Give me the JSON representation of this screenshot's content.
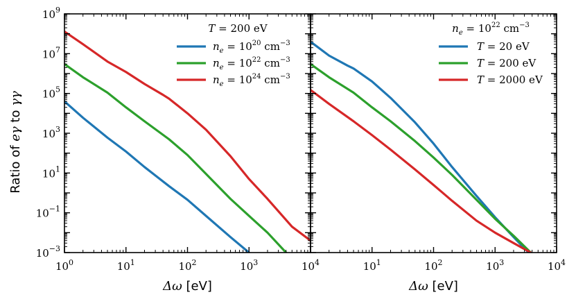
{
  "chart_data": [
    {
      "type": "line",
      "panel": "left",
      "xscale": "log",
      "yscale": "log",
      "xlim": [
        1,
        10000
      ],
      "ylim": [
        0.001,
        1000000000
      ],
      "xlabel": "Δω [eV]",
      "ylabel": "Ratio of eγ to γγ",
      "xticks": [
        {
          "v": 1,
          "base": "10",
          "exp": "0"
        },
        {
          "v": 10,
          "base": "10",
          "exp": "1"
        },
        {
          "v": 100,
          "base": "10",
          "exp": "2"
        },
        {
          "v": 1000,
          "base": "10",
          "exp": "3"
        },
        {
          "v": 10000,
          "base": "10",
          "exp": "4"
        }
      ],
      "yticks": [
        {
          "v": 0.001,
          "base": "10",
          "exp": "−3"
        },
        {
          "v": 0.1,
          "base": "10",
          "exp": "−1"
        },
        {
          "v": 10,
          "base": "10",
          "exp": "1"
        },
        {
          "v": 1000,
          "base": "10",
          "exp": "3"
        },
        {
          "v": 100000,
          "base": "10",
          "exp": "5"
        },
        {
          "v": 10000000,
          "base": "10",
          "exp": "7"
        },
        {
          "v": 1000000000,
          "base": "10",
          "exp": "9"
        }
      ],
      "legend_title": "T = 200 eV",
      "legend_loc": "upper right",
      "series": [
        {
          "name": "n_e = 10^20 cm^-3",
          "label_main": "n",
          "label_sub": "e",
          "label_rest": " = 10",
          "label_sup": "20",
          "label_unit": " cm",
          "label_unit_sup": "−3",
          "color": "#1f77b4",
          "x": [
            1,
            2,
            5,
            10,
            20,
            50,
            100,
            200,
            500,
            1000
          ],
          "y": [
            40000,
            6000,
            600,
            120,
            20,
            2.2,
            0.45,
            0.07,
            0.006,
            0.001
          ]
        },
        {
          "name": "n_e = 10^22 cm^-3",
          "label_main": "n",
          "label_sub": "e",
          "label_rest": " = 10",
          "label_sup": "22",
          "label_unit": " cm",
          "label_unit_sup": "−3",
          "color": "#2ca02c",
          "x": [
            1,
            2,
            5,
            10,
            20,
            50,
            100,
            200,
            500,
            1000,
            2000,
            4000
          ],
          "y": [
            3000000,
            650000,
            110000,
            20000,
            4000,
            500,
            80,
            9,
            0.5,
            0.07,
            0.01,
            0.001
          ]
        },
        {
          "name": "n_e = 10^24 cm^-3",
          "label_main": "n",
          "label_sub": "e",
          "label_rest": " = 10",
          "label_sup": "24",
          "label_unit": " cm",
          "label_unit_sup": "−3",
          "color": "#d62728",
          "x": [
            1,
            2,
            5,
            10,
            20,
            40,
            50,
            100,
            200,
            500,
            1000,
            2000,
            5000,
            10000
          ],
          "y": [
            130000000,
            30000000,
            4000000,
            1200000,
            300000,
            85000,
            55000,
            10000,
            1500,
            70,
            5,
            0.5,
            0.02,
            0.004
          ]
        }
      ]
    },
    {
      "type": "line",
      "panel": "right",
      "xscale": "log",
      "yscale": "log",
      "xlim": [
        1,
        10000
      ],
      "ylim": [
        0.001,
        1000000000
      ],
      "xlabel": "Δω [eV]",
      "xticks": [
        {
          "v": 10,
          "base": "10",
          "exp": "1"
        },
        {
          "v": 100,
          "base": "10",
          "exp": "2"
        },
        {
          "v": 1000,
          "base": "10",
          "exp": "3"
        },
        {
          "v": 10000,
          "base": "10",
          "exp": "4"
        }
      ],
      "legend_title": "n_e = 10^22 cm^-3",
      "legend_title_parts": {
        "main": "n",
        "sub": "e",
        "rest": " = 10",
        "sup": "22",
        "unit": " cm",
        "unit_sup": "−3"
      },
      "legend_loc": "upper right",
      "series": [
        {
          "name": "T = 20 eV",
          "label_text": "T = 20 eV",
          "color": "#1f77b4",
          "x": [
            1,
            2,
            4,
            5,
            10,
            20,
            50,
            100,
            200,
            500,
            1000,
            2000,
            3500
          ],
          "y": [
            40000000,
            8000000,
            2500000,
            1800000,
            400000,
            60000,
            3500,
            300,
            20,
            0.7,
            0.06,
            0.006,
            0.001
          ]
        },
        {
          "name": "T = 200 eV",
          "label_text": "T = 200 eV",
          "color": "#2ca02c",
          "x": [
            1,
            2,
            5,
            10,
            20,
            50,
            100,
            200,
            500,
            1000,
            2000,
            3800
          ],
          "y": [
            3000000,
            650000,
            110000,
            20000,
            4000,
            400,
            60,
            8,
            0.45,
            0.05,
            0.007,
            0.001
          ]
        },
        {
          "name": "T = 2000 eV",
          "label_text": "T = 2000 eV",
          "color": "#d62728",
          "x": [
            1,
            2,
            5,
            10,
            20,
            50,
            100,
            200,
            500,
            1000,
            2000,
            3800
          ],
          "y": [
            150000,
            30000,
            4000,
            800,
            150,
            15,
            2.5,
            0.4,
            0.04,
            0.01,
            0.003,
            0.001
          ]
        }
      ]
    }
  ]
}
